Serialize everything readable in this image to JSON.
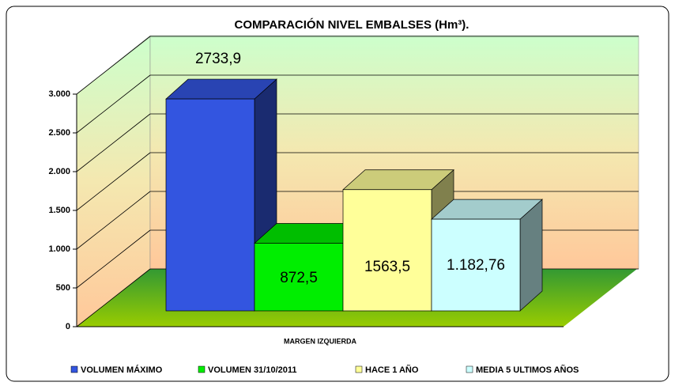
{
  "chart_data": {
    "type": "bar3d",
    "title": "COMPARACIÓN NIVEL EMBALSES (Hm³).",
    "categories": [
      "MARGEN IZQUIERDA"
    ],
    "series": [
      {
        "name": "VOLUMEN MÁXIMO",
        "color": "#3355e0",
        "values": [
          2733.9
        ],
        "value_labels": [
          "2733,9"
        ]
      },
      {
        "name": "VOLUMEN 31/10/2011",
        "color": "#00ee00",
        "values": [
          872.5
        ],
        "value_labels": [
          "872,5"
        ]
      },
      {
        "name": "HACE 1 AÑO",
        "color": "#ffff99",
        "values": [
          1563.5
        ],
        "value_labels": [
          "1563,5"
        ]
      },
      {
        "name": "MEDIA 5 ULTIMOS AÑOS",
        "color": "#ccffff",
        "values": [
          1182.76
        ],
        "value_labels": [
          "1.182,76"
        ]
      }
    ],
    "ylim": [
      0,
      3000
    ],
    "yticks": [
      0,
      500,
      {
        "value": 1000,
        "label": "1.000"
      },
      {
        "value": 1500,
        "label": "1.500"
      },
      {
        "value": 2000,
        "label": "2.000"
      },
      {
        "value": 2500,
        "label": "2.500"
      },
      {
        "value": 3000,
        "label": "3.000"
      }
    ],
    "grid": true,
    "legend": "bottom"
  }
}
